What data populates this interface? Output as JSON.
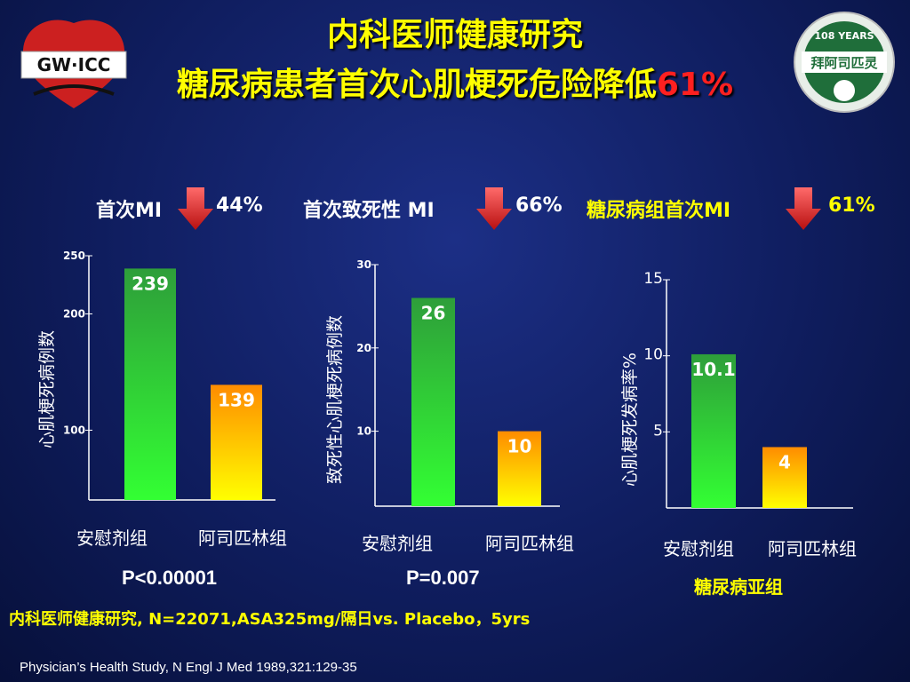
{
  "title": {
    "line1": "内科医师健康研究",
    "line2_main": "糖尿病患者首次心肌梗死危险降低",
    "line2_highlight": "61%"
  },
  "logos": {
    "left_text": "GW·ICC",
    "right_text_top": "108 YEARS",
    "right_text_main": "拜阿司匹灵"
  },
  "headers": [
    {
      "label": "首次MI",
      "value": "44%"
    },
    {
      "label": "首次致死性 MI",
      "value": "66%"
    },
    {
      "label": "糖尿病组首次MI",
      "value": "61%"
    }
  ],
  "colors": {
    "background": "#0f1d5e",
    "title": "#ffff00",
    "highlight": "#ff2020",
    "placebo_bar_top": "#2e9e3a",
    "placebo_bar_bottom": "#33ff33",
    "aspirin_bar_top": "#ff8c00",
    "aspirin_bar_bottom": "#ffff00",
    "arrow": "#e03030"
  },
  "chart_data": [
    {
      "type": "bar",
      "categories": [
        "安慰剂组",
        "阿司匹林组"
      ],
      "values": [
        239,
        139
      ],
      "ylabel": "心肌梗死病例数",
      "yticks": [
        100,
        200,
        250
      ],
      "ylim": [
        40,
        250
      ],
      "p_value": "P<0.00001"
    },
    {
      "type": "bar",
      "categories": [
        "安慰剂组",
        "阿司匹林组"
      ],
      "values": [
        26,
        10
      ],
      "ylabel": "致死性心肌梗死病例数",
      "yticks": [
        10,
        20,
        30
      ],
      "ylim": [
        1,
        30
      ],
      "p_value": "P=0.007"
    },
    {
      "type": "bar",
      "categories": [
        "安慰剂组",
        "阿司匹林组"
      ],
      "values": [
        10.1,
        4
      ],
      "ylabel": "心肌梗死发病率%",
      "yticks": [
        5,
        10,
        15
      ],
      "ylim": [
        0,
        15
      ],
      "subtitle": "糖尿病亚组"
    }
  ],
  "footnotes": {
    "study": "内科医师健康研究, N=22071,ASA325mg/隔日vs. Placebo，5yrs",
    "reference": "Physician’s Health Study, N Engl J Med 1989,321:129-35"
  }
}
